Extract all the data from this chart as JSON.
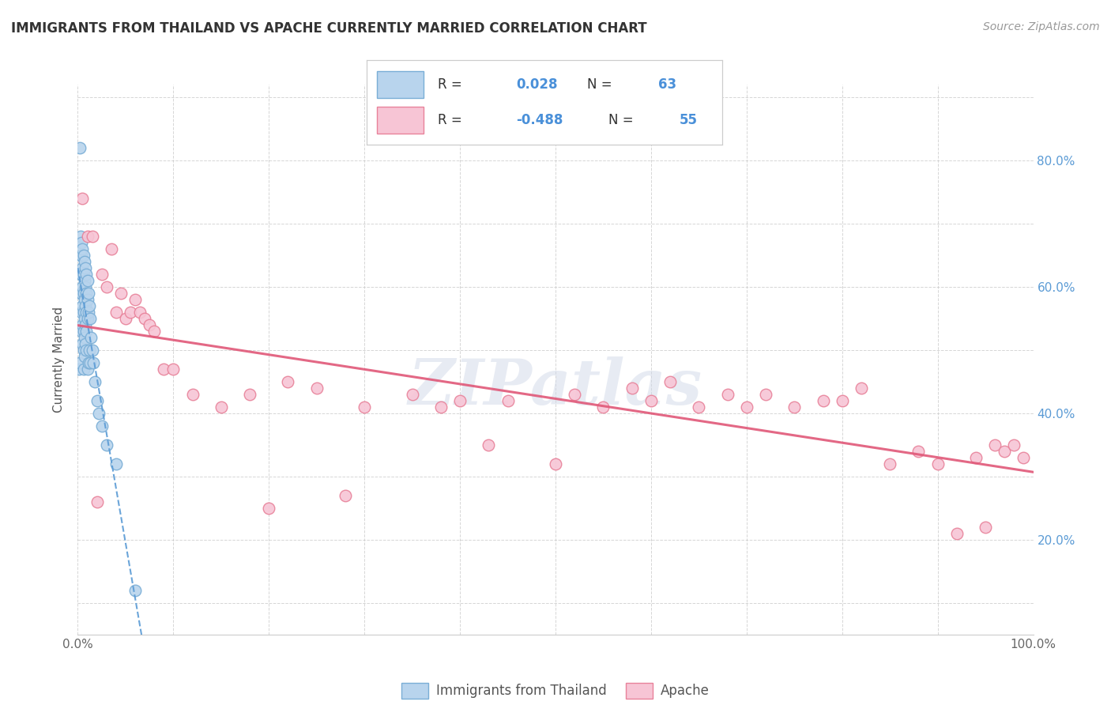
{
  "title": "IMMIGRANTS FROM THAILAND VS APACHE CURRENTLY MARRIED CORRELATION CHART",
  "source": "Source: ZipAtlas.com",
  "ylabel": "Currently Married",
  "blue_R": 0.028,
  "blue_N": 63,
  "pink_R": -0.488,
  "pink_N": 55,
  "blue_color": "#b8d4ed",
  "pink_color": "#f7c5d5",
  "blue_edge_color": "#7aaed6",
  "pink_edge_color": "#e8829a",
  "blue_line_color": "#5b9bd5",
  "pink_line_color": "#e05878",
  "watermark": "ZIPatlas",
  "xlim": [
    0.0,
    1.0
  ],
  "ylim": [
    0.05,
    0.92
  ],
  "blue_scatter_x": [
    0.001,
    0.002,
    0.002,
    0.003,
    0.003,
    0.003,
    0.003,
    0.004,
    0.004,
    0.004,
    0.004,
    0.004,
    0.004,
    0.005,
    0.005,
    0.005,
    0.005,
    0.005,
    0.005,
    0.006,
    0.006,
    0.006,
    0.006,
    0.006,
    0.006,
    0.006,
    0.007,
    0.007,
    0.007,
    0.007,
    0.007,
    0.007,
    0.008,
    0.008,
    0.008,
    0.008,
    0.008,
    0.009,
    0.009,
    0.009,
    0.009,
    0.009,
    0.01,
    0.01,
    0.01,
    0.01,
    0.011,
    0.011,
    0.011,
    0.012,
    0.012,
    0.013,
    0.013,
    0.014,
    0.015,
    0.016,
    0.018,
    0.02,
    0.022,
    0.025,
    0.03,
    0.04,
    0.06
  ],
  "blue_scatter_y": [
    0.47,
    0.82,
    0.48,
    0.68,
    0.65,
    0.62,
    0.59,
    0.67,
    0.65,
    0.62,
    0.59,
    0.56,
    0.53,
    0.66,
    0.63,
    0.6,
    0.57,
    0.54,
    0.51,
    0.65,
    0.62,
    0.59,
    0.56,
    0.53,
    0.5,
    0.47,
    0.64,
    0.61,
    0.58,
    0.55,
    0.52,
    0.49,
    0.63,
    0.6,
    0.57,
    0.54,
    0.51,
    0.62,
    0.59,
    0.56,
    0.53,
    0.5,
    0.61,
    0.58,
    0.55,
    0.47,
    0.59,
    0.56,
    0.48,
    0.57,
    0.5,
    0.55,
    0.48,
    0.52,
    0.5,
    0.48,
    0.45,
    0.42,
    0.4,
    0.38,
    0.35,
    0.32,
    0.12
  ],
  "pink_scatter_x": [
    0.005,
    0.01,
    0.015,
    0.02,
    0.025,
    0.03,
    0.035,
    0.04,
    0.045,
    0.05,
    0.055,
    0.06,
    0.065,
    0.07,
    0.075,
    0.08,
    0.09,
    0.1,
    0.12,
    0.15,
    0.18,
    0.2,
    0.22,
    0.25,
    0.28,
    0.3,
    0.35,
    0.38,
    0.4,
    0.43,
    0.45,
    0.5,
    0.52,
    0.55,
    0.58,
    0.6,
    0.62,
    0.65,
    0.68,
    0.7,
    0.72,
    0.75,
    0.78,
    0.8,
    0.82,
    0.85,
    0.88,
    0.9,
    0.92,
    0.94,
    0.95,
    0.96,
    0.97,
    0.98,
    0.99
  ],
  "pink_scatter_y": [
    0.74,
    0.68,
    0.68,
    0.26,
    0.62,
    0.6,
    0.66,
    0.56,
    0.59,
    0.55,
    0.56,
    0.58,
    0.56,
    0.55,
    0.54,
    0.53,
    0.47,
    0.47,
    0.43,
    0.41,
    0.43,
    0.25,
    0.45,
    0.44,
    0.27,
    0.41,
    0.43,
    0.41,
    0.42,
    0.35,
    0.42,
    0.32,
    0.43,
    0.41,
    0.44,
    0.42,
    0.45,
    0.41,
    0.43,
    0.41,
    0.43,
    0.41,
    0.42,
    0.42,
    0.44,
    0.32,
    0.34,
    0.32,
    0.21,
    0.33,
    0.22,
    0.35,
    0.34,
    0.35,
    0.33
  ]
}
